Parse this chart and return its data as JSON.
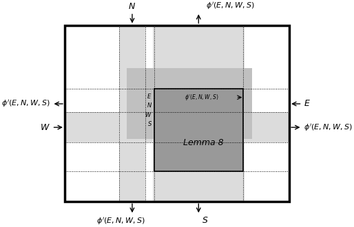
{
  "fig_width": 5.14,
  "fig_height": 3.3,
  "dpi": 100,
  "light_gray": "#dcdcdc",
  "mid_gray": "#c0c0c0",
  "dark_gray": "#999999",
  "phi_label": "$\\phi'(E, N, W, S)$",
  "lemma_label": "Lemma 8",
  "E_label": "$E$",
  "N_label": "$N$",
  "W_label": "$W$",
  "S_label": "$S$"
}
